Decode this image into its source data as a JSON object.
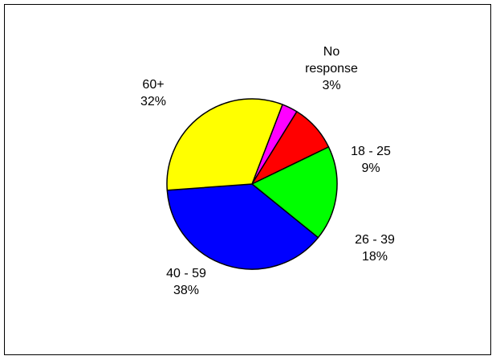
{
  "chart_data": {
    "type": "pie",
    "title": "",
    "slices": [
      {
        "label": "No response",
        "label_lines": [
          "No",
          "response"
        ],
        "value_text": "3%",
        "value": 3,
        "color": "#FF00FF"
      },
      {
        "label": "18 - 25",
        "label_lines": [
          "18 - 25"
        ],
        "value_text": "9%",
        "value": 9,
        "color": "#FF0000"
      },
      {
        "label": "26 - 39",
        "label_lines": [
          "26 - 39"
        ],
        "value_text": "18%",
        "value": 18,
        "color": "#00FF00"
      },
      {
        "label": "40 - 59",
        "label_lines": [
          "40 - 59"
        ],
        "value_text": "38%",
        "value": 38,
        "color": "#0000FF"
      },
      {
        "label": "60+",
        "label_lines": [
          "60+"
        ],
        "value_text": "32%",
        "value": 32,
        "color": "#FFFF00"
      }
    ],
    "start_angle_deg": 21,
    "direction": "clockwise",
    "legend": "none",
    "outline_color": "#000000"
  }
}
